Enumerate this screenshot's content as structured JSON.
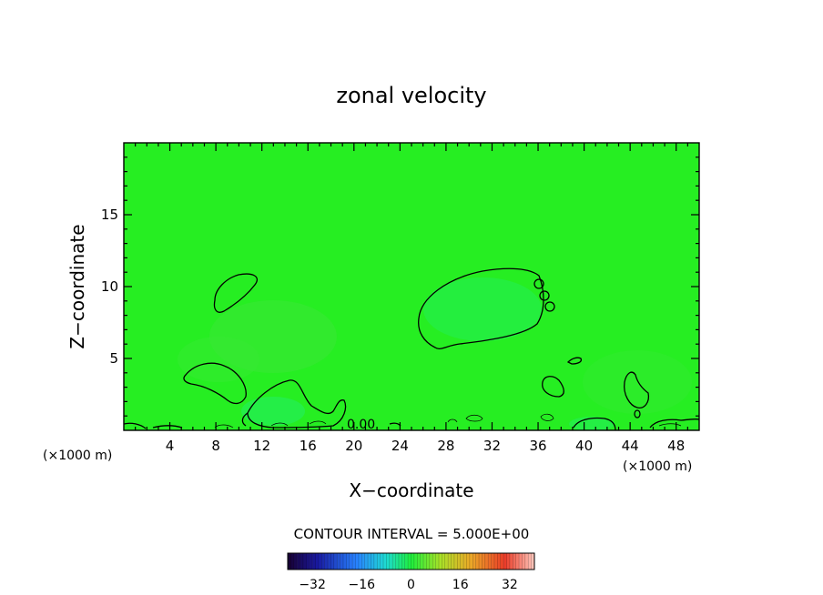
{
  "chart_data": {
    "type": "contour",
    "title": "zonal velocity",
    "xlabel": "X−coordinate",
    "ylabel": "Z−coordinate",
    "x_unit_left": "(×1000 m)",
    "x_unit_right": "(×1000 m)",
    "xlim": [
      0,
      50
    ],
    "ylim": [
      0,
      20
    ],
    "x_ticks": [
      4,
      8,
      12,
      16,
      20,
      24,
      28,
      32,
      36,
      40,
      44,
      48
    ],
    "y_ticks": [
      5,
      10,
      15
    ],
    "x_tick_labels": [
      "4",
      "8",
      "12",
      "16",
      "20",
      "24",
      "28",
      "32",
      "36",
      "40",
      "44",
      "48"
    ],
    "y_tick_labels": [
      "5",
      "10",
      "15"
    ],
    "contour_interval_text": "CONTOUR INTERVAL = 5.000E+00",
    "contour_label": "0.00",
    "background_color": "#22ee22",
    "colorbar": {
      "min": -40,
      "max": 40,
      "tick_values": [
        -32,
        -16,
        0,
        16,
        32
      ],
      "tick_labels": [
        "−32",
        "−16",
        "0",
        "16",
        "32"
      ]
    }
  }
}
